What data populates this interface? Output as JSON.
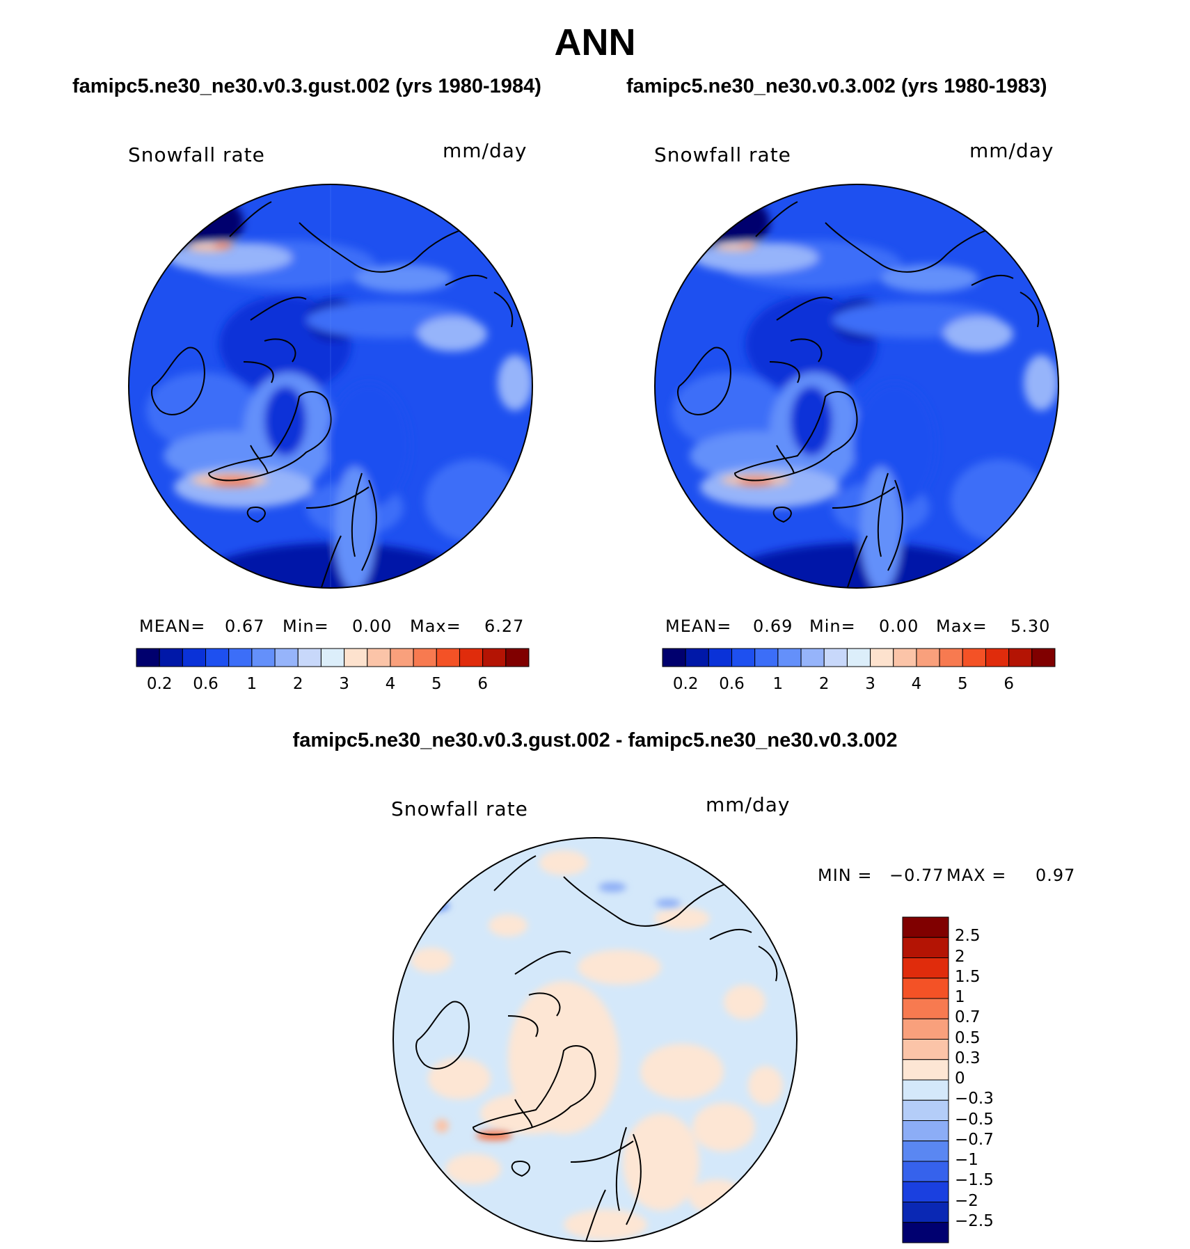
{
  "title": "ANN",
  "diff_title": "famipc5.ne30_ne30.v0.3.gust.002 - famipc5.ne30_ne30.v0.3.002",
  "panels": [
    {
      "case_title": "famipc5.ne30_ne30.v0.3.gust.002 (yrs 1980-1984)",
      "variable": "Snowfall rate",
      "units": "mm/day",
      "stats": {
        "mean_label": "MEAN=",
        "mean": "0.67",
        "min_label": "Min=",
        "min": "0.00",
        "max_label": "Max=",
        "max": "6.27"
      }
    },
    {
      "case_title": "famipc5.ne30_ne30.v0.3.002 (yrs 1980-1983)",
      "variable": "Snowfall rate",
      "units": "mm/day",
      "stats": {
        "mean_label": "MEAN=",
        "mean": "0.69",
        "min_label": "Min=",
        "min": "0.00",
        "max_label": "Max=",
        "max": "5.30"
      }
    }
  ],
  "diff_panel": {
    "variable": "Snowfall rate",
    "units": "mm/day",
    "stats": {
      "min_label": "MIN =",
      "min": "−0.77",
      "max_label": "MAX =",
      "max": "0.97"
    }
  },
  "abs_colorbar": {
    "colors": [
      "#00006e",
      "#0018a8",
      "#0a32d8",
      "#1e50f0",
      "#3c6ef8",
      "#6490fa",
      "#96b4fa",
      "#c8d8fa",
      "#dceefa",
      "#fde2ce",
      "#fbc4a8",
      "#f9a07c",
      "#f77a50",
      "#f45226",
      "#e02c0c",
      "#b41404",
      "#800000"
    ],
    "ticks": [
      {
        "label": "0.2",
        "boundary": 1
      },
      {
        "label": "0.6",
        "boundary": 3
      },
      {
        "label": "1",
        "boundary": 5
      },
      {
        "label": "2",
        "boundary": 7
      },
      {
        "label": "3",
        "boundary": 9
      },
      {
        "label": "4",
        "boundary": 11
      },
      {
        "label": "5",
        "boundary": 13
      },
      {
        "label": "6",
        "boundary": 15
      }
    ]
  },
  "diff_colorbar": {
    "colors_top_to_bottom": [
      "#800000",
      "#b41404",
      "#e02c0c",
      "#f45226",
      "#f77a50",
      "#f9a07c",
      "#fbc4a8",
      "#fde6d4",
      "#d4e8fa",
      "#b4cdf8",
      "#8cadf6",
      "#5a87f2",
      "#3662ec",
      "#1a40e0",
      "#0a28b4",
      "#000070"
    ],
    "labels_top_to_bottom": [
      "2.5",
      "2",
      "1.5",
      "1",
      "0.7",
      "0.5",
      "0.3",
      "0",
      "−0.3",
      "−0.5",
      "−0.7",
      "−1",
      "−1.5",
      "−2",
      "−2.5"
    ]
  }
}
